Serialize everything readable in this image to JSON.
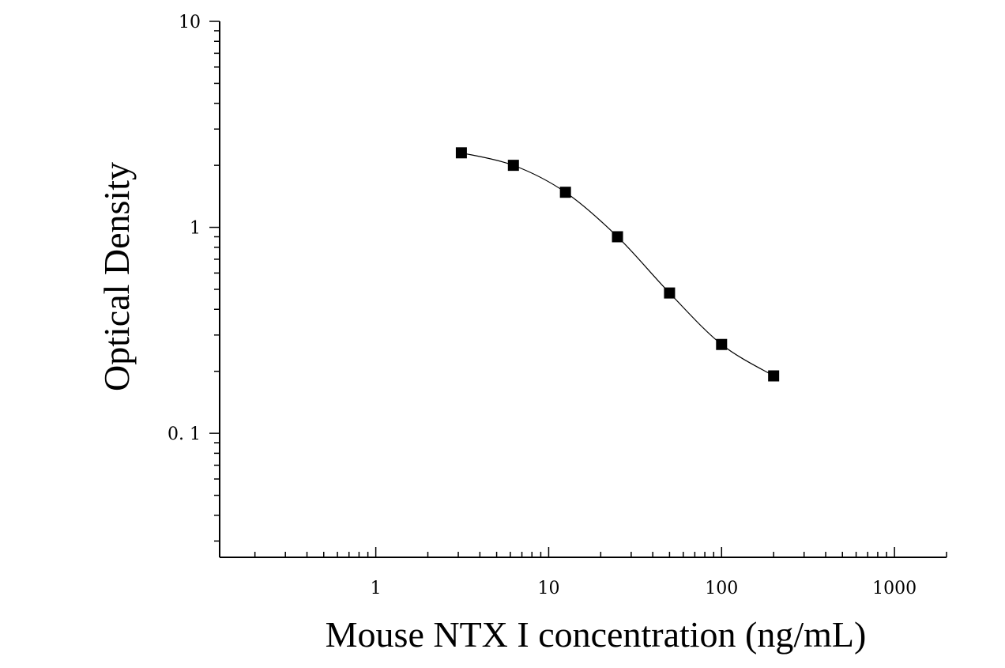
{
  "chart_data": {
    "type": "scatter",
    "xlabel": "Mouse NTX I concentration (ng/mL)",
    "ylabel": "Optical Density",
    "xscale": "log",
    "yscale": "log",
    "xlim": [
      0.125,
      2000
    ],
    "ylim": [
      0.025,
      10
    ],
    "xticks": [
      1,
      10,
      100,
      1000
    ],
    "xtick_labels": [
      "1",
      "10",
      "100",
      "1000"
    ],
    "yticks": [
      0.1,
      1,
      10
    ],
    "ytick_labels": [
      "0. 1",
      "1",
      "10"
    ],
    "grid": false,
    "legend": "none",
    "marker": "square",
    "fit": "four-parameter logistic curve",
    "colors": {
      "marker": "#000000",
      "line": "#000000",
      "axes": "#000000",
      "background": "#ffffff"
    },
    "series": [
      {
        "x": [
          3.125,
          6.25,
          12.5,
          25,
          50,
          100,
          200
        ],
        "y": [
          2.3,
          2.0,
          1.48,
          0.9,
          0.48,
          0.27,
          0.19
        ]
      }
    ]
  }
}
